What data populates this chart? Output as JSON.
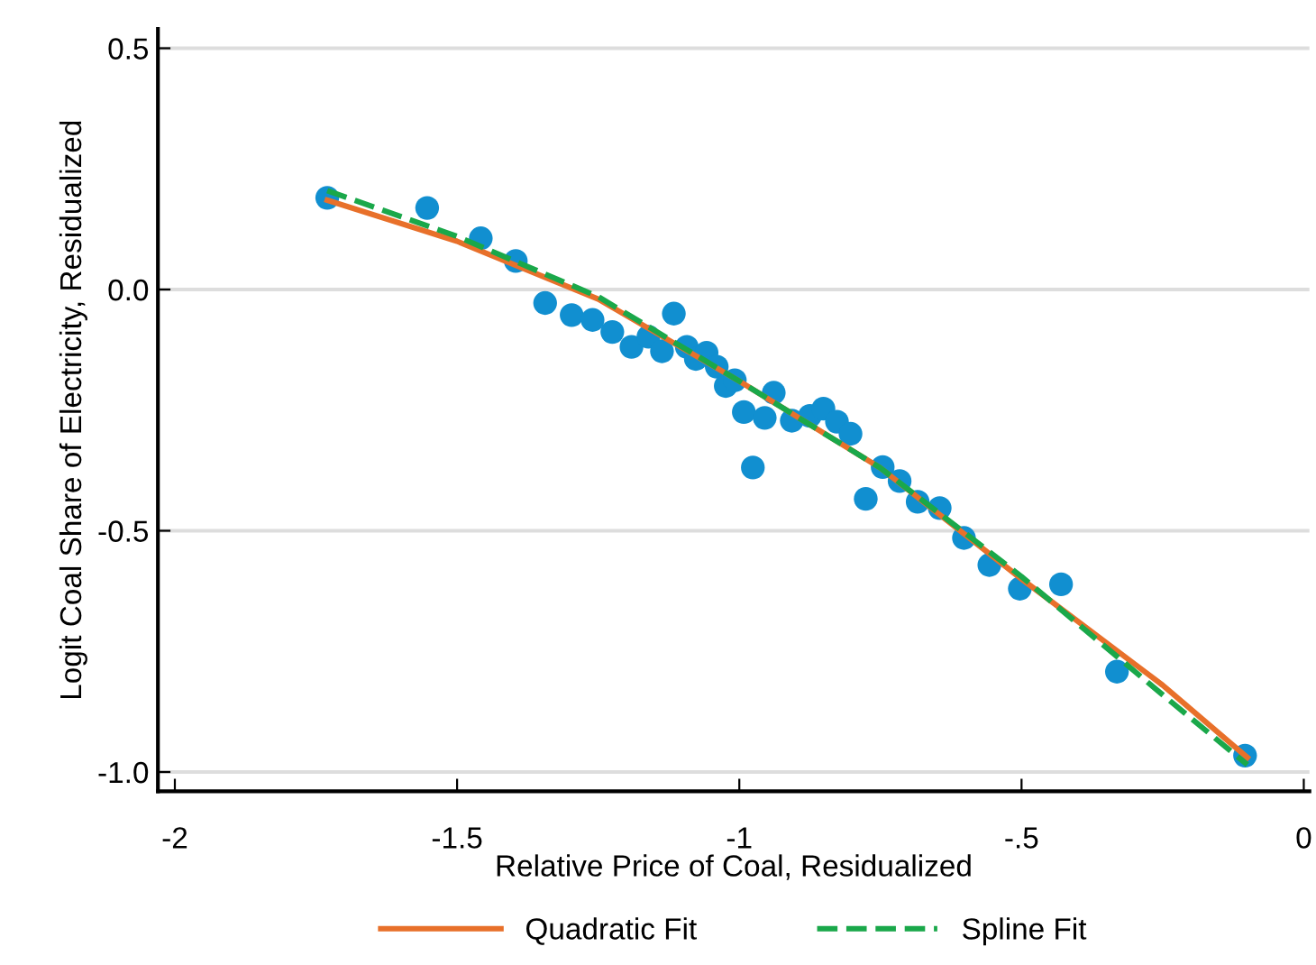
{
  "chart_data": {
    "type": "scatter",
    "xlabel": "Relative Price of Coal, Residualized",
    "ylabel": "Logit Coal Share of Electricity, Residualized",
    "xlim": [
      -2.03,
      0.01
    ],
    "ylim": [
      -1.04,
      0.54
    ],
    "xticks": [
      -2,
      -1.5,
      -1,
      {
        "value": -0.5,
        "label": "-.5"
      },
      0
    ],
    "yticks": [
      0.5,
      {
        "value": 0,
        "label": "0.0"
      },
      -0.5,
      {
        "value": -1,
        "label": "-1.0"
      }
    ],
    "grid": "y",
    "legend": "bottom",
    "series": [
      {
        "color": "#118fd0",
        "marker": "circle",
        "x": [
          -1.73,
          -1.553,
          -1.458,
          -1.396,
          -1.344,
          -1.297,
          -1.26,
          -1.225,
          -1.191,
          -1.161,
          -1.137,
          -1.116,
          -1.093,
          -1.077,
          -1.058,
          -1.04,
          -1.024,
          -1.008,
          -0.992,
          -0.976,
          -0.955,
          -0.939,
          -0.907,
          -0.875,
          -0.851,
          -0.827,
          -0.803,
          -0.776,
          -0.746,
          -0.716,
          -0.684,
          -0.645,
          -0.602,
          -0.557,
          -0.503,
          -0.43,
          -0.331,
          -0.104
        ],
        "values": [
          0.19,
          0.169,
          0.106,
          0.059,
          -0.028,
          -0.053,
          -0.063,
          -0.088,
          -0.119,
          -0.098,
          -0.128,
          -0.05,
          -0.119,
          -0.144,
          -0.131,
          -0.16,
          -0.2,
          -0.188,
          -0.254,
          -0.369,
          -0.266,
          -0.214,
          -0.272,
          -0.262,
          -0.247,
          -0.274,
          -0.299,
          -0.434,
          -0.368,
          -0.397,
          -0.44,
          -0.453,
          -0.515,
          -0.571,
          -0.62,
          -0.611,
          -0.792,
          -0.966
        ]
      },
      {
        "type": "line",
        "name": "Quadratic Fit",
        "color": "#e8702a",
        "line_style": "solid",
        "x": [
          -1.73,
          -1.5,
          -1.25,
          -1.0,
          -0.75,
          -0.5,
          -0.25,
          -0.1
        ],
        "values": [
          0.185,
          0.1,
          -0.02,
          -0.19,
          -0.37,
          -0.6,
          -0.82,
          -0.97
        ]
      },
      {
        "type": "line",
        "name": "Spline Fit",
        "color": "#1aa84a",
        "line_style": "dashed",
        "x": [
          -1.73,
          -1.5,
          -1.25,
          -1.0,
          -0.75,
          -0.5,
          -0.25,
          -0.1
        ],
        "values": [
          0.205,
          0.11,
          -0.015,
          -0.19,
          -0.37,
          -0.595,
          -0.84,
          -0.985
        ]
      }
    ]
  }
}
